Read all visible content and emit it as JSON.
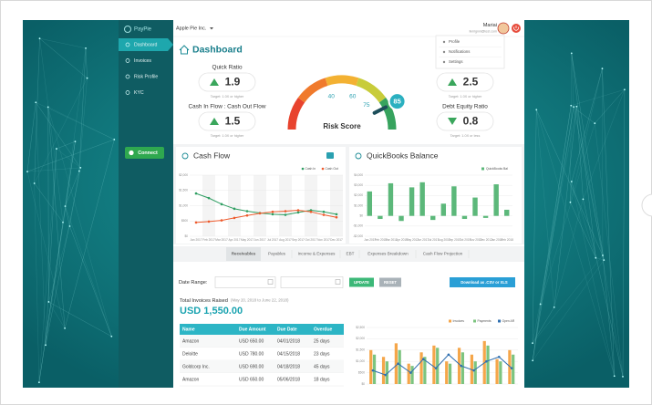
{
  "sidebar": {
    "logo": "PayPie",
    "items": [
      "Dashboard",
      "Invoices",
      "Risk Profile",
      "KYC"
    ],
    "active": 0,
    "button": "Connect"
  },
  "header": {
    "company": "Apple Pie Inc.",
    "user": "Mariai",
    "email": "lkmlgnnl@test.com"
  },
  "dropdown": [
    "Profile",
    "Notifications",
    "Settings"
  ],
  "title": "Dashboard",
  "kpis": [
    {
      "label": "Quick Ratio",
      "value": 1.9,
      "trend": "up",
      "target": "Target: 1.0X or higher"
    },
    {
      "label": "Cash In Flow : Cash Out Flow",
      "value": 1.5,
      "trend": "up",
      "target": "Target: 1.0X or higher"
    },
    {
      "value": 2.5,
      "trend": "up",
      "target": "Target: 1.0X or higher"
    },
    {
      "label": "Debt Equity Ratio",
      "value": 0.8,
      "trend": "down",
      "target": "Target: 1.0X or less"
    }
  ],
  "gauge": {
    "label": "Risk Score",
    "range": [
      0,
      100
    ],
    "ticks": [
      40,
      60,
      75
    ],
    "value": 85,
    "colors": [
      "#e8432e",
      "#f07a2c",
      "#f3b132",
      "#c8cc3a",
      "#37a35e"
    ]
  },
  "cash_flow": {
    "type": "line",
    "title": "Cash Flow",
    "categories": [
      "Jan 2017",
      "Feb 2017",
      "Mar 2017",
      "Apr 2017",
      "May 2017",
      "Jun 2017",
      "Jul 2017",
      "Aug 2017",
      "Sep 2017",
      "Oct 2017",
      "Nov 2017",
      "Dec 2017"
    ],
    "series": [
      {
        "name": "Cash In",
        "color": "#2f9e62",
        "values": [
          1400,
          1250,
          1050,
          900,
          820,
          760,
          720,
          700,
          780,
          850,
          800,
          720
        ]
      },
      {
        "name": "Cash Out",
        "color": "#ee5a2c",
        "values": [
          450,
          480,
          520,
          600,
          680,
          750,
          800,
          820,
          850,
          800,
          700,
          620
        ]
      }
    ],
    "ylim": [
      0,
      2000
    ],
    "yticks": [
      {
        "value": 0,
        "label": "$0"
      },
      {
        "value": 500,
        "label": "$500"
      },
      {
        "value": 1000,
        "label": "$1,000"
      },
      {
        "value": 1500,
        "label": "$1,500"
      },
      {
        "value": 2000,
        "label": "$2,000"
      }
    ]
  },
  "quickbooks": {
    "type": "bar",
    "title": "QuickBooks Balance",
    "categories": [
      "Jan 2017",
      "Feb 2017",
      "Mar 2017",
      "Apr 2017",
      "May 2017",
      "Jun 2017",
      "Jul 2017",
      "Aug 2017",
      "Sep 2017",
      "Oct 2017",
      "Nov 2017",
      "Dec 2017",
      "Jan 2018",
      "Feb 2018"
    ],
    "series": [
      {
        "name": "QuickBooks Bal",
        "color": "#5cb87a",
        "values": [
          2400,
          -300,
          3200,
          -500,
          2800,
          3300,
          -400,
          1200,
          2900,
          -300,
          1800,
          -200,
          3100,
          600
        ]
      }
    ],
    "ylim": [
      -2000,
      4000
    ],
    "yticks": [
      {
        "value": -2000,
        "label": "-$2,000"
      },
      {
        "value": -1000,
        "label": "-$1,000"
      },
      {
        "value": 0,
        "label": "$0"
      },
      {
        "value": 1000,
        "label": "$1,000"
      },
      {
        "value": 2000,
        "label": "$2,000"
      },
      {
        "value": 3000,
        "label": "$3,000"
      },
      {
        "value": 4000,
        "label": "$4,000"
      }
    ]
  },
  "tabs": [
    "Receivables",
    "Payables",
    "Income & Expenses",
    "EBT",
    "Expenses Breakdown",
    "Cash Flow Projection"
  ],
  "active_tab": 0,
  "filters": {
    "label": "Date Range:",
    "update": "UPDATE",
    "reset": "RESET",
    "download": "Download as .CSV or XLS"
  },
  "summary": {
    "label": "Total Invoices Raised",
    "period": "(May 20, 2018 to June 22, 2018)",
    "total": "USD 1,550.00"
  },
  "table": {
    "columns": [
      "Name",
      "Due Amount",
      "Due Date",
      "Overdue"
    ],
    "rows": [
      [
        "Amazon",
        "USD 650.00",
        "04/01/2018",
        "25 days"
      ],
      [
        "Deloitte",
        "USD 780.00",
        "04/15/2018",
        "23 days"
      ],
      [
        "Goldcorp Inc.",
        "USD 690.00",
        "04/18/2018",
        "45 days"
      ],
      [
        "Amazon",
        "USD 650.00",
        "05/06/2018",
        "18 days"
      ]
    ]
  },
  "receivables": {
    "type": "bar",
    "series": [
      {
        "name": "Invoices",
        "color": "#f5a64a",
        "values": [
          1500,
          1200,
          1800,
          900,
          1400,
          1700,
          1000,
          1600,
          1300,
          1900,
          1100,
          1500
        ]
      },
      {
        "name": "Payments",
        "color": "#7cc47f",
        "values": [
          1300,
          1000,
          1500,
          800,
          1200,
          1600,
          900,
          1400,
          1000,
          1700,
          1000,
          1300
        ]
      },
      {
        "name": "Open AR",
        "color": "#2f6fb0",
        "type": "line",
        "values": [
          600,
          400,
          900,
          500,
          1100,
          700,
          1300,
          800,
          600,
          1000,
          1200,
          700
        ]
      }
    ],
    "ylim": [
      0,
      2500
    ],
    "yticks": [
      {
        "value": 0,
        "label": "$0"
      },
      {
        "value": 500,
        "label": "$500"
      },
      {
        "value": 1000,
        "label": "$1,000"
      },
      {
        "value": 1500,
        "label": "$1,500"
      },
      {
        "value": 2000,
        "label": "$2,000"
      },
      {
        "value": 2500,
        "label": "$2,500"
      }
    ]
  }
}
